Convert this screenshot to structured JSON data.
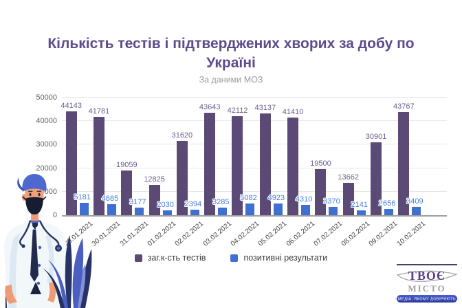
{
  "header": {
    "title": "Кількість тестів і підтверджених хворих за добу по Україні",
    "subtitle": "За даними МОЗ"
  },
  "chart_data": {
    "type": "bar",
    "title": "Кількість тестів і підтверджених хворих за добу по Україні",
    "subtitle": "За даними МОЗ",
    "categories": [
      "29.01.2021",
      "30.01.2021",
      "31.01.2021",
      "01.02.2021",
      "02.02.2021",
      "03.02.2021",
      "04.02.2021",
      "05.02.2021",
      "06.02.2021",
      "07.02.2021",
      "08.02.2021",
      "09.02.2021",
      "10.02.2021"
    ],
    "series": [
      {
        "name": "заг.к-сть тестів",
        "color": "#5b4a75",
        "label_color": "#6b5f8f",
        "values": [
          44143,
          41781,
          19059,
          12825,
          31620,
          43643,
          42112,
          43137,
          41410,
          19500,
          13662,
          30901,
          43767
        ]
      },
      {
        "name": "позитивні результати",
        "color": "#3f6fd1",
        "label_color": "#4a7de0",
        "values": [
          5181,
          4685,
          3177,
          2030,
          2394,
          3285,
          5082,
          4923,
          4310,
          3370,
          2141,
          2656,
          3409
        ]
      }
    ],
    "ylim": [
      0,
      50000
    ],
    "yticks": [
      0,
      10000,
      20000,
      30000,
      40000,
      50000
    ],
    "grid": true,
    "legend_position": "bottom",
    "xlabel": "",
    "ylabel": ""
  },
  "branding": {
    "logo_line1": "ТВОЄ",
    "logo_line2": "МІСТО",
    "tagline_open": "«",
    "tagline": "МЕДІА, ЯКОМУ ДОВІРЯЮТЬ",
    "tagline_close": "»"
  },
  "illustration": {
    "name": "doctor-in-mask-with-plant"
  },
  "colors": {
    "title": "#5d4b8c",
    "subtitle": "#9e9e9e",
    "axis_label": "#616161",
    "date_label": "#3f3f3f",
    "grid": "#e6e6e6",
    "baseline": "#9e9e9e",
    "logo_purple": "#5b3e85",
    "logo_gray": "#a0a0a0",
    "tagline_pill": "#2f3f9f"
  }
}
